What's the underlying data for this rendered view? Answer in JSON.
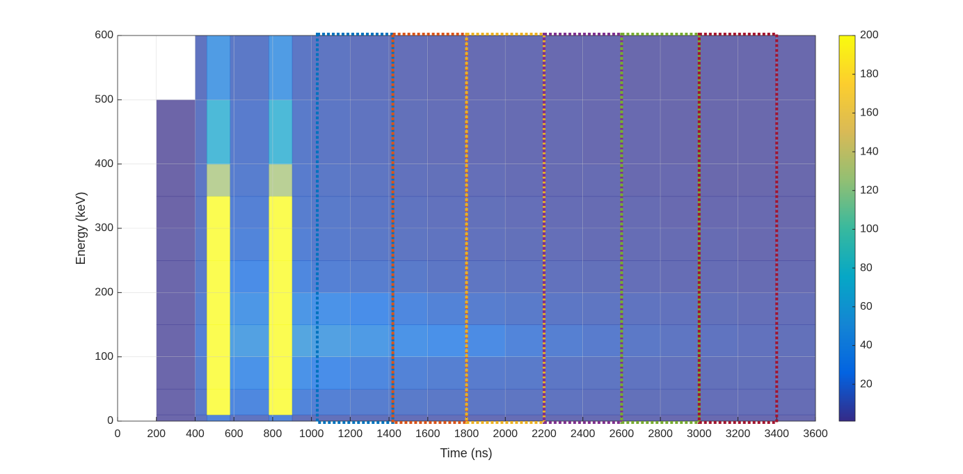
{
  "chart_data": {
    "type": "heatmap",
    "xlabel": "Time (ns)",
    "ylabel": "Energy (keV)",
    "xlim": [
      0,
      3600
    ],
    "xticks": [
      0,
      200,
      400,
      600,
      800,
      1000,
      1200,
      1400,
      1600,
      1800,
      2000,
      2200,
      2400,
      2600,
      2800,
      3000,
      3200,
      3400,
      3600
    ],
    "ylim": [
      0,
      600
    ],
    "yticks": [
      0,
      100,
      200,
      300,
      400,
      500,
      600
    ],
    "grid": true,
    "xbins": [
      0,
      200,
      400,
      460,
      580,
      780,
      900,
      1000,
      1200,
      1400,
      1600,
      1800,
      2000,
      2200,
      2400,
      2600,
      2800,
      3000,
      3200,
      3400,
      3600
    ],
    "ybins": [
      0,
      10,
      50,
      100,
      150,
      200,
      250,
      300,
      350,
      400,
      500,
      600
    ],
    "z": [
      [
        null,
        2,
        10,
        20,
        10,
        20,
        8,
        8,
        8,
        7,
        7,
        6,
        6,
        5,
        5,
        5,
        4,
        4,
        4,
        4
      ],
      [
        null,
        2,
        14,
        200,
        22,
        200,
        20,
        18,
        16,
        14,
        13,
        12,
        11,
        10,
        9,
        8,
        8,
        7,
        7,
        6
      ],
      [
        null,
        2,
        16,
        200,
        30,
        200,
        30,
        26,
        22,
        19,
        17,
        15,
        14,
        12,
        11,
        10,
        9,
        8,
        8,
        7
      ],
      [
        null,
        2,
        18,
        200,
        45,
        200,
        50,
        45,
        38,
        32,
        28,
        24,
        20,
        17,
        15,
        13,
        11,
        10,
        9,
        8
      ],
      [
        null,
        2,
        16,
        200,
        35,
        200,
        35,
        30,
        26,
        22,
        19,
        16,
        14,
        12,
        11,
        10,
        9,
        8,
        7,
        7
      ],
      [
        null,
        2,
        14,
        200,
        25,
        200,
        22,
        18,
        16,
        14,
        12,
        11,
        10,
        9,
        8,
        7,
        6,
        6,
        5,
        5
      ],
      [
        null,
        2,
        13,
        200,
        20,
        200,
        18,
        15,
        13,
        11,
        10,
        9,
        8,
        7,
        6,
        6,
        5,
        5,
        4,
        4
      ],
      [
        null,
        1,
        12,
        200,
        18,
        200,
        16,
        14,
        12,
        10,
        9,
        8,
        7,
        6,
        5,
        5,
        4,
        4,
        4,
        3
      ],
      [
        null,
        1,
        12,
        130,
        16,
        130,
        15,
        13,
        11,
        9,
        8,
        7,
        6,
        5,
        5,
        4,
        4,
        3,
        3,
        3
      ],
      [
        null,
        1,
        11,
        70,
        15,
        70,
        14,
        12,
        10,
        8,
        7,
        6,
        5,
        5,
        4,
        4,
        3,
        3,
        3,
        3
      ],
      [
        null,
        null,
        10,
        40,
        13,
        40,
        12,
        11,
        9,
        7,
        6,
        5,
        5,
        4,
        4,
        3,
        3,
        3,
        3,
        3
      ]
    ],
    "clim": [
      1,
      200
    ],
    "cticks": [
      20,
      40,
      60,
      80,
      100,
      120,
      140,
      160,
      180,
      200
    ],
    "colormap": [
      "#352a87",
      "#0363e1",
      "#1485d4",
      "#06a7c6",
      "#38b99e",
      "#92bf73",
      "#d9ba56",
      "#fcce2e",
      "#f9fb0e"
    ],
    "windows": [
      {
        "x": [
          1030,
          1420
        ],
        "color": "#0072bd"
      },
      {
        "x": [
          1420,
          1800
        ],
        "color": "#d95319"
      },
      {
        "x": [
          1800,
          2200
        ],
        "color": "#edb120"
      },
      {
        "x": [
          2200,
          2600
        ],
        "color": "#7e2f8e"
      },
      {
        "x": [
          2600,
          3000
        ],
        "color": "#77ac30"
      },
      {
        "x": [
          3000,
          3400
        ],
        "color": "#a2142f"
      }
    ]
  }
}
